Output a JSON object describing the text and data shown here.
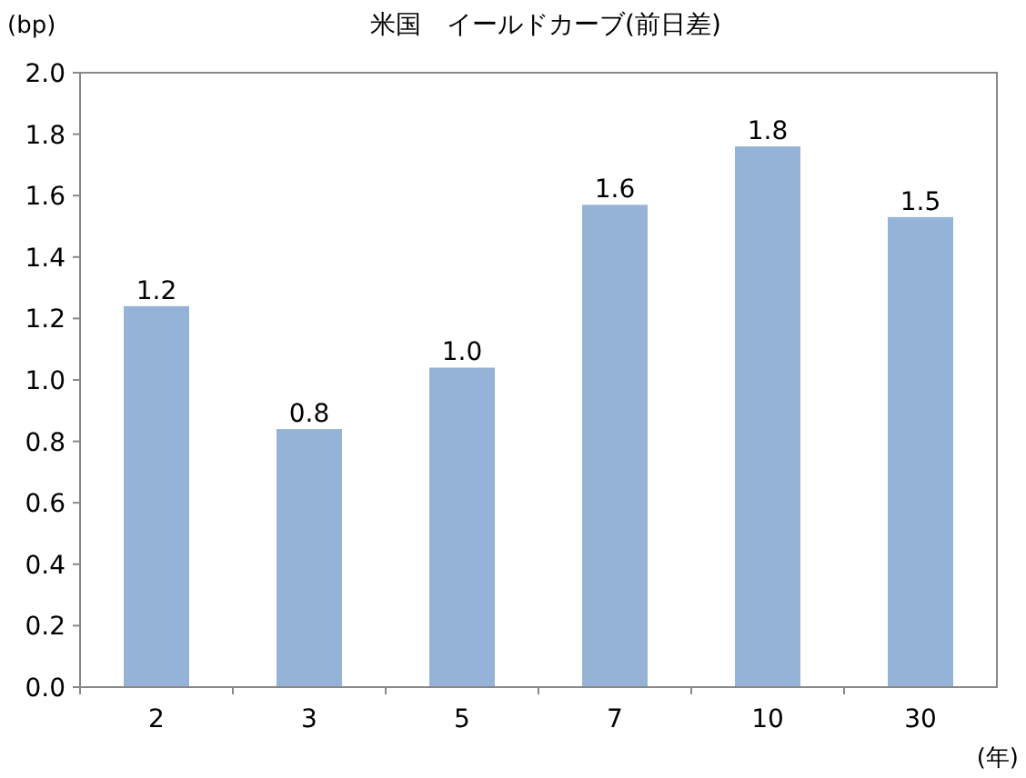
{
  "chart_data": {
    "type": "bar",
    "title": "米国　イールドカーブ(前日差)",
    "ylabel": "(bp)",
    "xlabel": "(年)",
    "categories": [
      "2",
      "3",
      "5",
      "7",
      "10",
      "30"
    ],
    "values": [
      1.24,
      0.84,
      1.04,
      1.57,
      1.76,
      1.53
    ],
    "value_labels": [
      "1.2",
      "0.8",
      "1.0",
      "1.6",
      "1.8",
      "1.5"
    ],
    "color": "#95b3d7",
    "ylim": [
      0,
      2
    ],
    "yticks": [
      {
        "value": 0,
        "label": "0.0"
      },
      {
        "value": 0.2,
        "label": "0.2"
      },
      {
        "value": 0.4,
        "label": "0.4"
      },
      {
        "value": 0.6,
        "label": "0.6"
      },
      {
        "value": 0.8,
        "label": "0.8"
      },
      {
        "value": 1,
        "label": "1.0"
      },
      {
        "value": 1.2,
        "label": "1.2"
      },
      {
        "value": 1.4,
        "label": "1.4"
      },
      {
        "value": 1.6,
        "label": "1.6"
      },
      {
        "value": 1.8,
        "label": "1.8"
      },
      {
        "value": 2,
        "label": "2.0"
      }
    ]
  }
}
